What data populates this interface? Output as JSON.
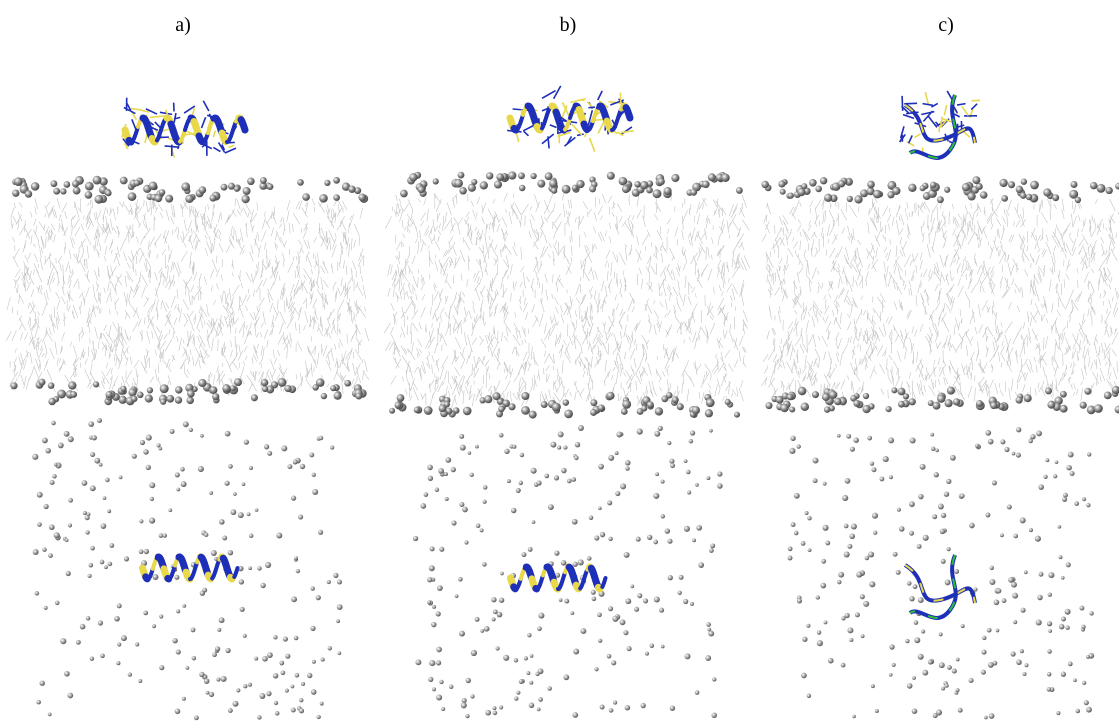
{
  "panels": [
    {
      "label": "a)",
      "peptide_top": "helix",
      "peptide_bottom": "helix"
    },
    {
      "label": "b)",
      "peptide_top": "helix",
      "peptide_bottom": "helix"
    },
    {
      "label": "c)",
      "peptide_top": "coil",
      "peptide_bottom": "coil"
    }
  ],
  "colors": {
    "membrane_lines": "#b9b9b9",
    "headgroup_beads": "#8a8a8a",
    "solvent_beads": "#9a9a9a",
    "helix_blue": "#1e2fb8",
    "helix_yellow": "#e8d84a",
    "coil_green": "#2ebd3b"
  }
}
